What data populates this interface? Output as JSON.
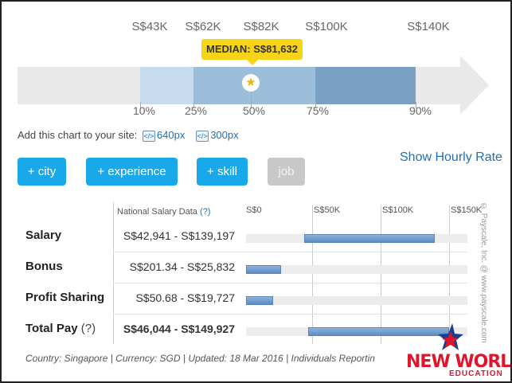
{
  "percentile_amounts": [
    "S$43K",
    "S$62K",
    "S$82K",
    "S$100K",
    "S$140K"
  ],
  "percentile_labels": [
    "10%",
    "25%",
    "50%",
    "75%",
    "90%"
  ],
  "median": {
    "label": "MEDIAN: S$81,632",
    "icon": "star-icon"
  },
  "add_chart": {
    "text": "Add this chart to your site:",
    "size1": "640px",
    "size2": "300px"
  },
  "buttons": {
    "city": "+ city",
    "experience": "+ experience",
    "skill": "+ skill",
    "job": "job"
  },
  "show_hourly": "Show Hourly Rate",
  "side_credit": "© Payscale, Inc. @ www.payscale.com",
  "table": {
    "header": "National Salary Data",
    "header_help": "(?)",
    "scale": [
      "S$0",
      "S$50K",
      "S$100K",
      "S$150K"
    ],
    "rows": [
      {
        "label": "Salary",
        "help": "",
        "range": "S$42,941 - S$139,197",
        "low": 42941,
        "high": 139197
      },
      {
        "label": "Bonus",
        "help": "",
        "range": "S$201.34 - S$25,832",
        "low": 201.34,
        "high": 25832
      },
      {
        "label": "Profit Sharing",
        "help": "",
        "range": "S$50.68 - S$19,727",
        "low": 50.68,
        "high": 19727
      },
      {
        "label": "Total Pay",
        "help": "(?)",
        "range": "S$46,044 - S$149,927",
        "low": 46044,
        "high": 149927
      }
    ]
  },
  "footer": "Country: Singapore | Currency: SGD | Updated: 18 Mar 2016 | Individuals Reportin",
  "logo": {
    "name": "NEW WORLD",
    "sub": "EDUCATION"
  },
  "colors": {
    "accent_blue": "#1aa9e8",
    "link_blue": "#1f6fb2",
    "median_yellow": "#f7d516",
    "logo_red": "#e0152b"
  }
}
